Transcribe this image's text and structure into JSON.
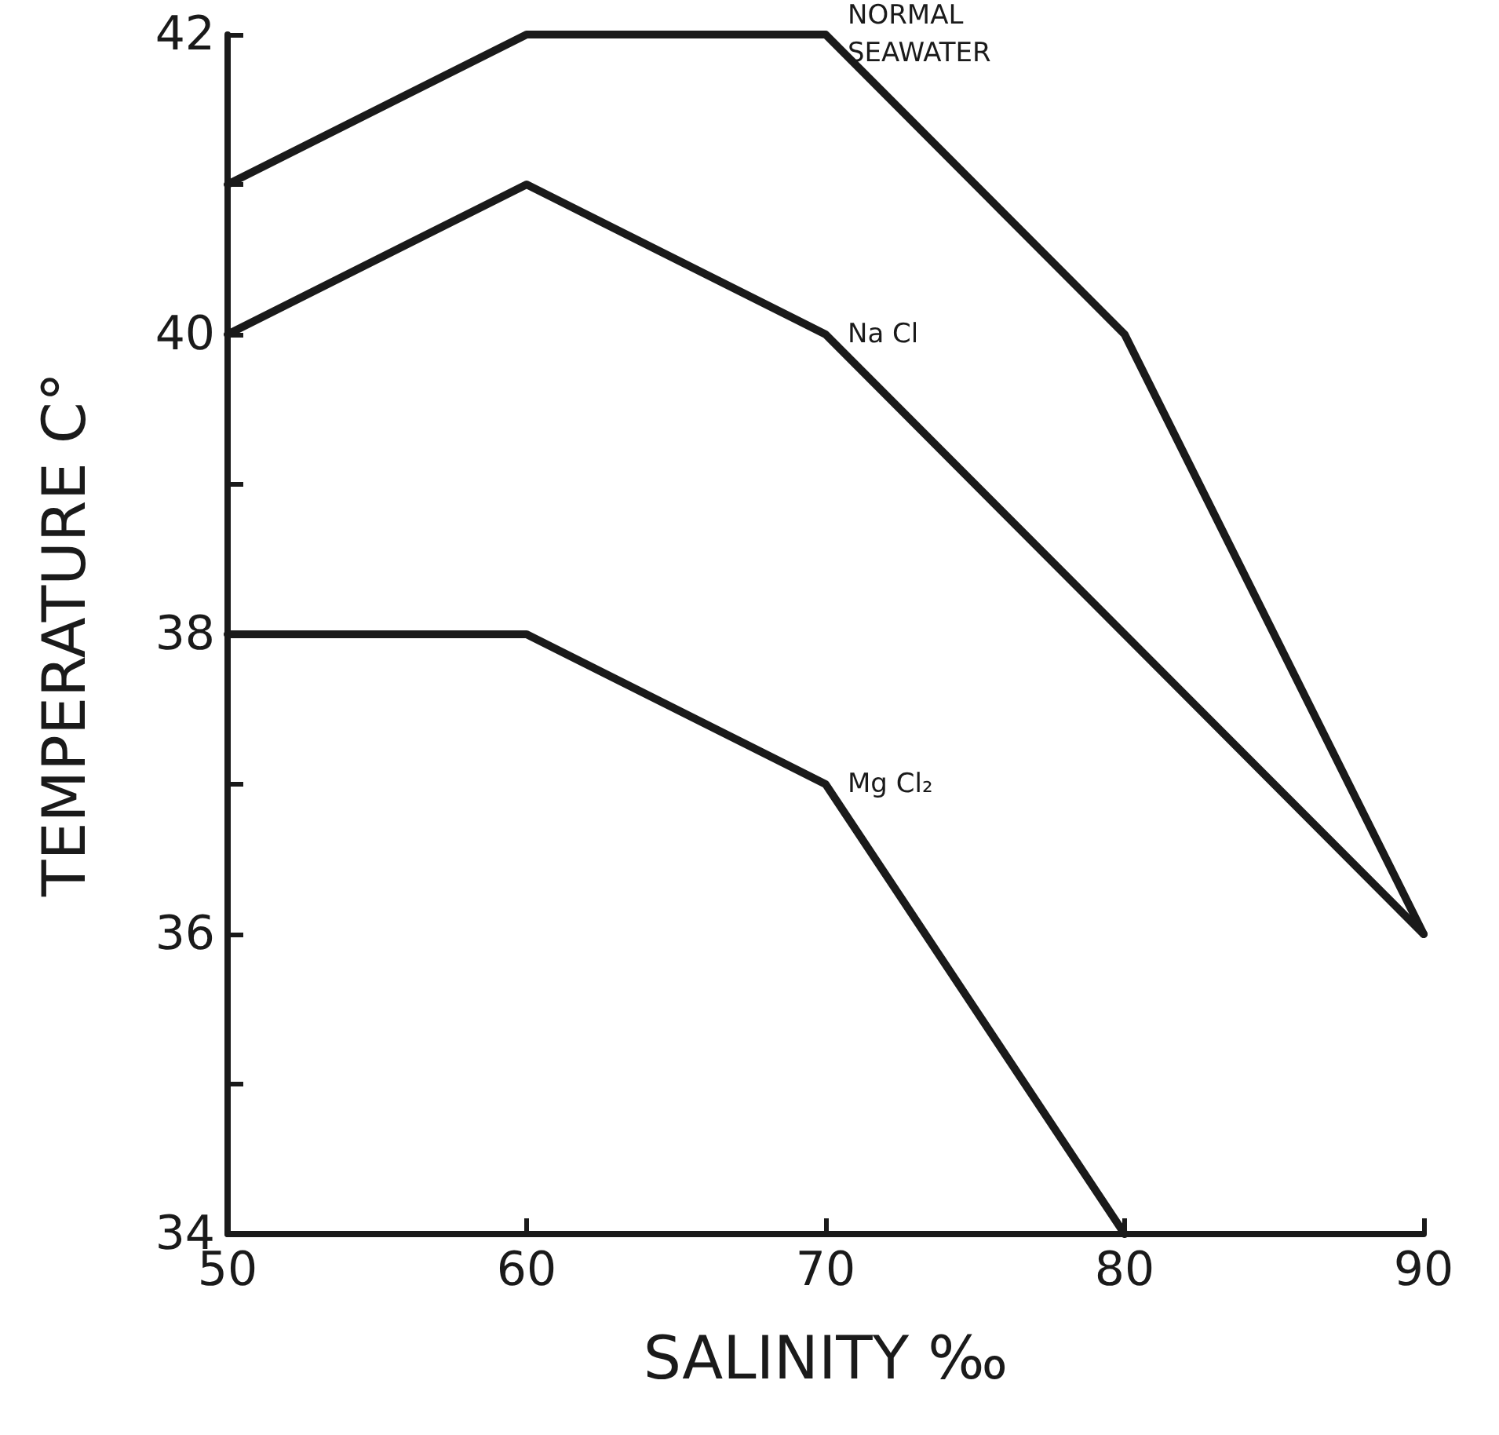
{
  "chart_data": {
    "type": "line",
    "xlabel": "SALINITY ‰",
    "ylabel": "TEMPERATURE C°",
    "xlim": [
      50,
      90
    ],
    "xticks": [
      50,
      60,
      70,
      80,
      90
    ],
    "ylim": [
      34,
      42
    ],
    "yticks": [
      34,
      {
        "value": 35,
        "label": null
      },
      36,
      {
        "value": 37,
        "label": null
      },
      38,
      {
        "value": 39,
        "label": null
      },
      40,
      {
        "value": 41,
        "label": null
      },
      42
    ],
    "grid": false,
    "legend": false,
    "marker": "none",
    "line_style": "solid",
    "series": [
      {
        "name": "NORMAL SEAWATER",
        "color": "#1a1a1a",
        "x": [
          50,
          60,
          70,
          80,
          90
        ],
        "values": [
          41,
          42,
          42,
          40,
          36
        ]
      },
      {
        "name": "Na Cl",
        "color": "#1a1a1a",
        "x": [
          50,
          60,
          70,
          90
        ],
        "values": [
          40,
          41,
          40,
          36
        ]
      },
      {
        "name": "Mg Cl₂",
        "color": "#1a1a1a",
        "x": [
          50,
          60,
          70,
          80
        ],
        "values": [
          38,
          38,
          37,
          34
        ]
      }
    ]
  }
}
